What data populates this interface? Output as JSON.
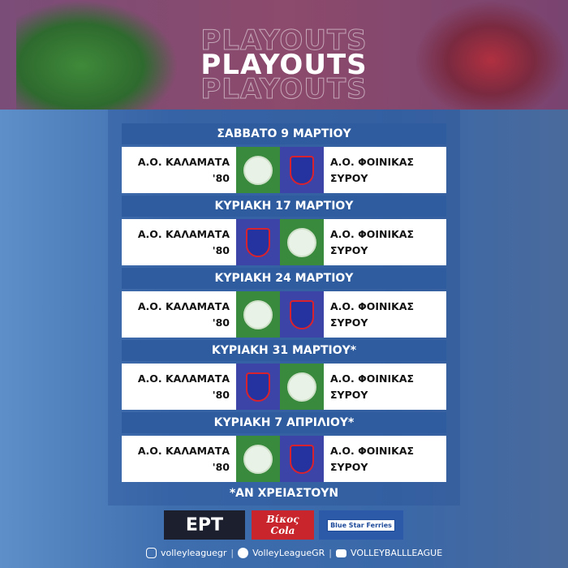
{
  "title": "PLAYOUTS",
  "matches": [
    {
      "date": "ΣΑΒΒΑΤΟ 9 ΜΑΡΤΙΟΥ",
      "home_line1": "Α.Ο. ΚΑΛΑΜΑΤΑ",
      "home_line2": "'80",
      "away_line1": "Α.Ο. ΦΟΙΝΙΚΑΣ",
      "away_line2": "ΣΥΡΟΥ",
      "logo_order": [
        "kalamata",
        "syros"
      ]
    },
    {
      "date": "ΚΥΡΙΑΚΗ 17 ΜΑΡΤΙΟΥ",
      "home_line1": "Α.Ο. ΚΑΛΑΜΑΤΑ",
      "home_line2": "'80",
      "away_line1": "Α.Ο. ΦΟΙΝΙΚΑΣ",
      "away_line2": "ΣΥΡΟΥ",
      "logo_order": [
        "syros",
        "kalamata"
      ]
    },
    {
      "date": "ΚΥΡΙΑΚΗ 24 ΜΑΡΤΙΟΥ",
      "home_line1": "Α.Ο. ΚΑΛΑΜΑΤΑ",
      "home_line2": "'80",
      "away_line1": "Α.Ο. ΦΟΙΝΙΚΑΣ",
      "away_line2": "ΣΥΡΟΥ",
      "logo_order": [
        "kalamata",
        "syros"
      ]
    },
    {
      "date": "ΚΥΡΙΑΚΗ 31 ΜΑΡΤΙΟΥ*",
      "home_line1": "Α.Ο. ΚΑΛΑΜΑΤΑ",
      "home_line2": "'80",
      "away_line1": "Α.Ο. ΦΟΙΝΙΚΑΣ",
      "away_line2": "ΣΥΡΟΥ",
      "logo_order": [
        "syros",
        "kalamata"
      ]
    },
    {
      "date": "ΚΥΡΙΑΚΗ 7 ΑΠΡΙΛΙΟΥ*",
      "home_line1": "Α.Ο. ΚΑΛΑΜΑΤΑ",
      "home_line2": "'80",
      "away_line1": "Α.Ο. ΦΟΙΝΙΚΑΣ",
      "away_line2": "ΣΥΡΟΥ",
      "logo_order": [
        "kalamata",
        "syros"
      ]
    }
  ],
  "note": "*ΑΝ ΧΡΕΙΑΣΤΟΥΝ",
  "sponsors": {
    "ert": "ΕΡΤ",
    "vikos_1": "Βίκος",
    "vikos_2": "Cola",
    "bluestar": "Blue Star Ferries"
  },
  "social": {
    "instagram": "volleyleaguegr",
    "facebook": "VolleyLeagueGR",
    "youtube": "VOLLEYBALLLEAGUE"
  },
  "colors": {
    "kalamata": "#3a8a3e",
    "syros": "#3c44a8",
    "date_bar": "#2f5c9e"
  }
}
